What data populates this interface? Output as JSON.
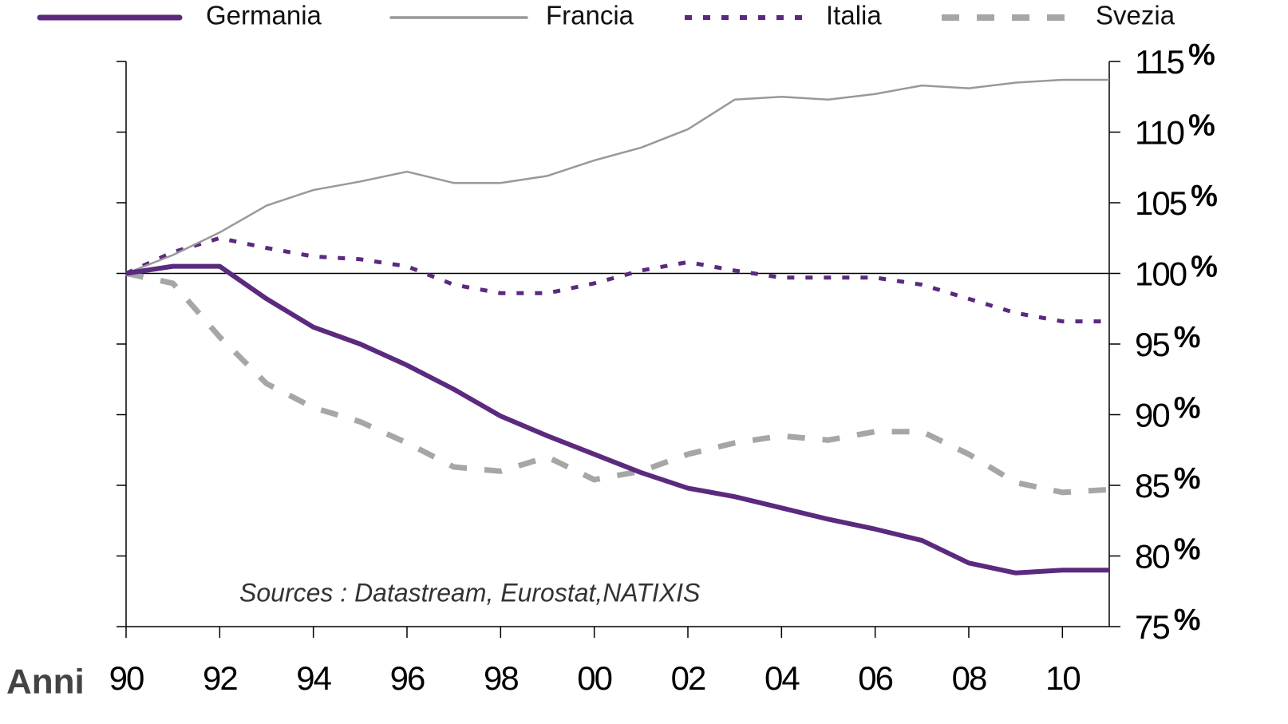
{
  "chart_data": {
    "type": "line",
    "x_label": "Anni",
    "annotation": "Sources : Datastream, Eurostat,NATIXIS",
    "y_unit": "%",
    "x": [
      1990,
      1991,
      1992,
      1993,
      1994,
      1995,
      1996,
      1997,
      1998,
      1999,
      2000,
      2001,
      2002,
      2003,
      2004,
      2005,
      2006,
      2007,
      2008,
      2009,
      2010,
      2011
    ],
    "xlim": [
      1990,
      2011
    ],
    "xticks": [
      {
        "value": 1990,
        "label": "90"
      },
      {
        "value": 1992,
        "label": "92"
      },
      {
        "value": 1994,
        "label": "94"
      },
      {
        "value": 1996,
        "label": "96"
      },
      {
        "value": 1998,
        "label": "98"
      },
      {
        "value": 2000,
        "label": "00"
      },
      {
        "value": 2002,
        "label": "02"
      },
      {
        "value": 2004,
        "label": "04"
      },
      {
        "value": 2006,
        "label": "06"
      },
      {
        "value": 2008,
        "label": "08"
      },
      {
        "value": 2010,
        "label": "10"
      }
    ],
    "ylim": [
      75,
      115
    ],
    "yticks": [
      75,
      80,
      85,
      90,
      95,
      100,
      105,
      110,
      115
    ],
    "reference_line": 100,
    "series": [
      {
        "name": "Germania",
        "color": "#5b2a7e",
        "style": "solid",
        "width": 6,
        "values": [
          100,
          100.5,
          100.5,
          98.2,
          96.2,
          95,
          93.5,
          91.8,
          89.9,
          88.5,
          87.2,
          85.9,
          84.8,
          84.2,
          83.4,
          82.6,
          81.9,
          81.1,
          79.5,
          78.8,
          79,
          79
        ]
      },
      {
        "name": "Francia",
        "color": "#999999",
        "style": "solid",
        "width": 2.5,
        "values": [
          100,
          101.3,
          102.9,
          104.8,
          105.9,
          106.5,
          107.2,
          106.4,
          106.4,
          106.9,
          108,
          108.9,
          110.2,
          112.3,
          112.5,
          112.3,
          112.7,
          113.3,
          113.1,
          113.5,
          113.7,
          113.7
        ]
      },
      {
        "name": "Italia",
        "color": "#5b2a7e",
        "style": "dotted",
        "width": 5,
        "values": [
          100,
          101.5,
          102.5,
          101.8,
          101.2,
          101,
          100.5,
          99.2,
          98.6,
          98.6,
          99.3,
          100.2,
          100.8,
          100.2,
          99.7,
          99.7,
          99.7,
          99.2,
          98.2,
          97.2,
          96.6,
          96.6
        ]
      },
      {
        "name": "Svezia",
        "color": "#a6a6a6",
        "style": "dashed",
        "width": 7,
        "values": [
          100,
          99.3,
          95.5,
          92.2,
          90.5,
          89.5,
          88,
          86.3,
          86,
          87,
          85.4,
          86,
          87.2,
          88,
          88.5,
          88.2,
          88.8,
          88.8,
          87.2,
          85.2,
          84.5,
          84.7
        ]
      }
    ]
  }
}
